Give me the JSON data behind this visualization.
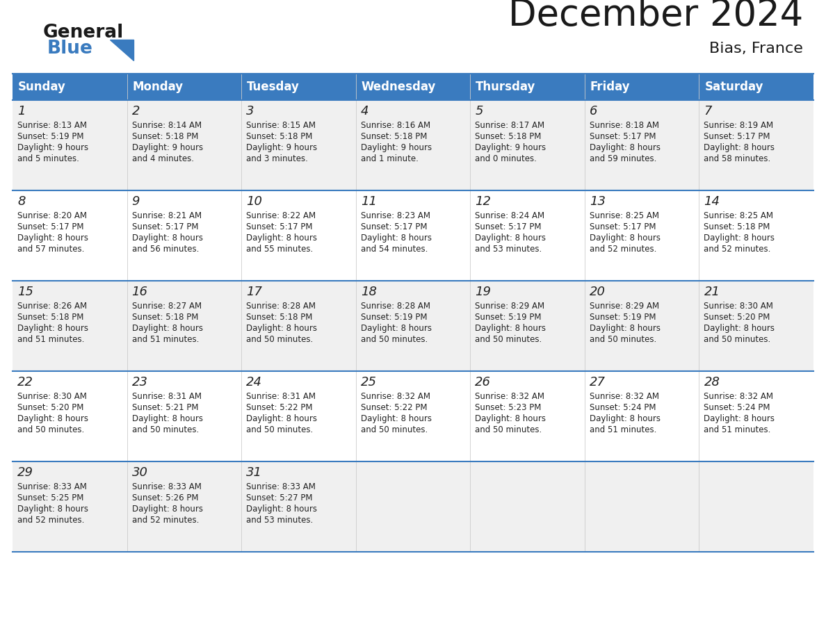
{
  "title": "December 2024",
  "subtitle": "Bias, France",
  "header_bg_color": "#3a7bbf",
  "header_text_color": "#ffffff",
  "day_headers": [
    "Sunday",
    "Monday",
    "Tuesday",
    "Wednesday",
    "Thursday",
    "Friday",
    "Saturday"
  ],
  "row_bg_even": "#f0f0f0",
  "row_bg_odd": "#ffffff",
  "cell_text_color": "#222222",
  "grid_line_color": "#3a7bbf",
  "title_color": "#1a1a1a",
  "subtitle_color": "#1a1a1a",
  "logo_general_color": "#1a1a1a",
  "logo_blue_color": "#3a7bbf",
  "weeks": [
    [
      {
        "day": 1,
        "sunrise": "8:13 AM",
        "sunset": "5:19 PM",
        "daylight": "9 hours\nand 5 minutes."
      },
      {
        "day": 2,
        "sunrise": "8:14 AM",
        "sunset": "5:18 PM",
        "daylight": "9 hours\nand 4 minutes."
      },
      {
        "day": 3,
        "sunrise": "8:15 AM",
        "sunset": "5:18 PM",
        "daylight": "9 hours\nand 3 minutes."
      },
      {
        "day": 4,
        "sunrise": "8:16 AM",
        "sunset": "5:18 PM",
        "daylight": "9 hours\nand 1 minute."
      },
      {
        "day": 5,
        "sunrise": "8:17 AM",
        "sunset": "5:18 PM",
        "daylight": "9 hours\nand 0 minutes."
      },
      {
        "day": 6,
        "sunrise": "8:18 AM",
        "sunset": "5:17 PM",
        "daylight": "8 hours\nand 59 minutes."
      },
      {
        "day": 7,
        "sunrise": "8:19 AM",
        "sunset": "5:17 PM",
        "daylight": "8 hours\nand 58 minutes."
      }
    ],
    [
      {
        "day": 8,
        "sunrise": "8:20 AM",
        "sunset": "5:17 PM",
        "daylight": "8 hours\nand 57 minutes."
      },
      {
        "day": 9,
        "sunrise": "8:21 AM",
        "sunset": "5:17 PM",
        "daylight": "8 hours\nand 56 minutes."
      },
      {
        "day": 10,
        "sunrise": "8:22 AM",
        "sunset": "5:17 PM",
        "daylight": "8 hours\nand 55 minutes."
      },
      {
        "day": 11,
        "sunrise": "8:23 AM",
        "sunset": "5:17 PM",
        "daylight": "8 hours\nand 54 minutes."
      },
      {
        "day": 12,
        "sunrise": "8:24 AM",
        "sunset": "5:17 PM",
        "daylight": "8 hours\nand 53 minutes."
      },
      {
        "day": 13,
        "sunrise": "8:25 AM",
        "sunset": "5:17 PM",
        "daylight": "8 hours\nand 52 minutes."
      },
      {
        "day": 14,
        "sunrise": "8:25 AM",
        "sunset": "5:18 PM",
        "daylight": "8 hours\nand 52 minutes."
      }
    ],
    [
      {
        "day": 15,
        "sunrise": "8:26 AM",
        "sunset": "5:18 PM",
        "daylight": "8 hours\nand 51 minutes."
      },
      {
        "day": 16,
        "sunrise": "8:27 AM",
        "sunset": "5:18 PM",
        "daylight": "8 hours\nand 51 minutes."
      },
      {
        "day": 17,
        "sunrise": "8:28 AM",
        "sunset": "5:18 PM",
        "daylight": "8 hours\nand 50 minutes."
      },
      {
        "day": 18,
        "sunrise": "8:28 AM",
        "sunset": "5:19 PM",
        "daylight": "8 hours\nand 50 minutes."
      },
      {
        "day": 19,
        "sunrise": "8:29 AM",
        "sunset": "5:19 PM",
        "daylight": "8 hours\nand 50 minutes."
      },
      {
        "day": 20,
        "sunrise": "8:29 AM",
        "sunset": "5:19 PM",
        "daylight": "8 hours\nand 50 minutes."
      },
      {
        "day": 21,
        "sunrise": "8:30 AM",
        "sunset": "5:20 PM",
        "daylight": "8 hours\nand 50 minutes."
      }
    ],
    [
      {
        "day": 22,
        "sunrise": "8:30 AM",
        "sunset": "5:20 PM",
        "daylight": "8 hours\nand 50 minutes."
      },
      {
        "day": 23,
        "sunrise": "8:31 AM",
        "sunset": "5:21 PM",
        "daylight": "8 hours\nand 50 minutes."
      },
      {
        "day": 24,
        "sunrise": "8:31 AM",
        "sunset": "5:22 PM",
        "daylight": "8 hours\nand 50 minutes."
      },
      {
        "day": 25,
        "sunrise": "8:32 AM",
        "sunset": "5:22 PM",
        "daylight": "8 hours\nand 50 minutes."
      },
      {
        "day": 26,
        "sunrise": "8:32 AM",
        "sunset": "5:23 PM",
        "daylight": "8 hours\nand 50 minutes."
      },
      {
        "day": 27,
        "sunrise": "8:32 AM",
        "sunset": "5:24 PM",
        "daylight": "8 hours\nand 51 minutes."
      },
      {
        "day": 28,
        "sunrise": "8:32 AM",
        "sunset": "5:24 PM",
        "daylight": "8 hours\nand 51 minutes."
      }
    ],
    [
      {
        "day": 29,
        "sunrise": "8:33 AM",
        "sunset": "5:25 PM",
        "daylight": "8 hours\nand 52 minutes."
      },
      {
        "day": 30,
        "sunrise": "8:33 AM",
        "sunset": "5:26 PM",
        "daylight": "8 hours\nand 52 minutes."
      },
      {
        "day": 31,
        "sunrise": "8:33 AM",
        "sunset": "5:27 PM",
        "daylight": "8 hours\nand 53 minutes."
      },
      null,
      null,
      null,
      null
    ]
  ]
}
